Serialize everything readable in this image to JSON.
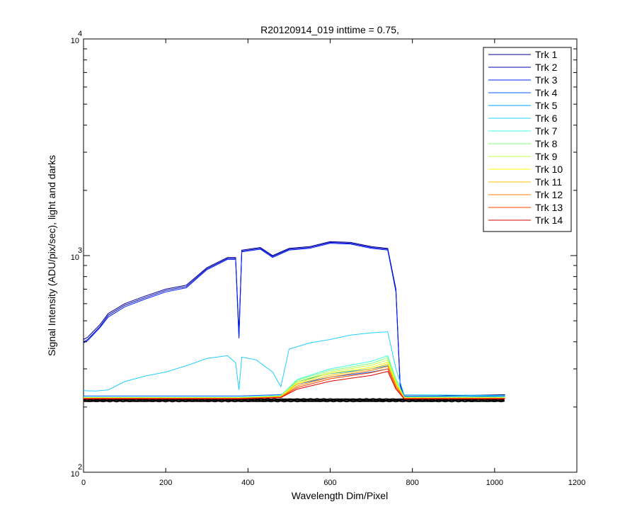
{
  "chart_data": {
    "type": "line",
    "title": "R20120914_019 inttime = 0.75,",
    "xlabel": "Wavelength Dim/Pixel",
    "ylabel": "Signal Intensity (ADU/pix/sec), light and darks",
    "xlim": [
      0,
      1200
    ],
    "ylim": [
      100,
      10000
    ],
    "yscale": "log",
    "x_ticks": [
      0,
      200,
      400,
      600,
      800,
      1000,
      1200
    ],
    "y_ticks": [
      {
        "value": 100,
        "base": "10",
        "exp": "2"
      },
      {
        "value": 1000,
        "base": "10",
        "exp": "3"
      },
      {
        "value": 10000,
        "base": "10",
        "exp": "4"
      }
    ],
    "grid": false,
    "legend_position": "top-right",
    "series": [
      {
        "name": "Trk 1",
        "color": "#00008f",
        "points": [
          [
            0,
            410
          ],
          [
            10,
            420
          ],
          [
            40,
            480
          ],
          [
            60,
            540
          ],
          [
            100,
            600
          ],
          [
            150,
            650
          ],
          [
            200,
            700
          ],
          [
            250,
            730
          ],
          [
            300,
            880
          ],
          [
            350,
            980
          ],
          [
            370,
            980
          ],
          [
            378,
            440
          ],
          [
            385,
            1060
          ],
          [
            430,
            1090
          ],
          [
            460,
            1000
          ],
          [
            500,
            1080
          ],
          [
            550,
            1100
          ],
          [
            600,
            1160
          ],
          [
            650,
            1150
          ],
          [
            700,
            1100
          ],
          [
            740,
            1080
          ],
          [
            760,
            700
          ],
          [
            770,
            260
          ],
          [
            780,
            225
          ],
          [
            860,
            225
          ],
          [
            1025,
            228
          ]
        ]
      },
      {
        "name": "Trk 2",
        "color": "#0000bf",
        "points": [
          [
            0,
            400
          ],
          [
            10,
            410
          ],
          [
            40,
            470
          ],
          [
            60,
            530
          ],
          [
            100,
            590
          ],
          [
            150,
            640
          ],
          [
            200,
            690
          ],
          [
            250,
            720
          ],
          [
            300,
            870
          ],
          [
            350,
            970
          ],
          [
            370,
            970
          ],
          [
            378,
            420
          ],
          [
            385,
            1050
          ],
          [
            430,
            1080
          ],
          [
            460,
            990
          ],
          [
            500,
            1070
          ],
          [
            550,
            1090
          ],
          [
            600,
            1150
          ],
          [
            650,
            1140
          ],
          [
            700,
            1090
          ],
          [
            740,
            1070
          ],
          [
            760,
            690
          ],
          [
            770,
            255
          ],
          [
            780,
            222
          ],
          [
            860,
            222
          ],
          [
            1025,
            226
          ]
        ]
      },
      {
        "name": "Trk 3",
        "color": "#0020ff",
        "points": [
          [
            0,
            395
          ],
          [
            10,
            405
          ],
          [
            40,
            465
          ],
          [
            60,
            520
          ],
          [
            100,
            580
          ],
          [
            150,
            630
          ],
          [
            200,
            680
          ],
          [
            250,
            710
          ],
          [
            300,
            860
          ],
          [
            350,
            960
          ],
          [
            370,
            960
          ],
          [
            378,
            415
          ],
          [
            385,
            1040
          ],
          [
            430,
            1070
          ],
          [
            460,
            980
          ],
          [
            500,
            1060
          ],
          [
            550,
            1080
          ],
          [
            600,
            1140
          ],
          [
            650,
            1130
          ],
          [
            700,
            1080
          ],
          [
            740,
            1060
          ],
          [
            760,
            680
          ],
          [
            770,
            252
          ],
          [
            780,
            221
          ],
          [
            860,
            221
          ],
          [
            1025,
            224
          ]
        ]
      },
      {
        "name": "Trk 4",
        "color": "#0060ff",
        "points": [
          [
            0,
            225
          ],
          [
            380,
            225
          ],
          [
            480,
            228
          ],
          [
            520,
            255
          ],
          [
            600,
            275
          ],
          [
            700,
            290
          ],
          [
            740,
            300
          ],
          [
            760,
            255
          ],
          [
            780,
            224
          ],
          [
            1025,
            224
          ]
        ]
      },
      {
        "name": "Trk 5",
        "color": "#00a0ff",
        "points": [
          [
            0,
            222
          ],
          [
            380,
            222
          ],
          [
            480,
            226
          ],
          [
            520,
            262
          ],
          [
            600,
            285
          ],
          [
            700,
            300
          ],
          [
            740,
            310
          ],
          [
            760,
            262
          ],
          [
            780,
            222
          ],
          [
            1025,
            222
          ]
        ]
      },
      {
        "name": "Trk 6",
        "color": "#20d0ff",
        "points": [
          [
            0,
            238
          ],
          [
            30,
            237
          ],
          [
            60,
            240
          ],
          [
            100,
            262
          ],
          [
            150,
            278
          ],
          [
            200,
            290
          ],
          [
            250,
            310
          ],
          [
            300,
            335
          ],
          [
            350,
            345
          ],
          [
            370,
            320
          ],
          [
            378,
            240
          ],
          [
            385,
            340
          ],
          [
            420,
            330
          ],
          [
            460,
            290
          ],
          [
            480,
            248
          ],
          [
            500,
            370
          ],
          [
            550,
            395
          ],
          [
            600,
            410
          ],
          [
            650,
            430
          ],
          [
            700,
            440
          ],
          [
            740,
            445
          ],
          [
            760,
            300
          ],
          [
            780,
            228
          ],
          [
            1025,
            226
          ]
        ]
      },
      {
        "name": "Trk 7",
        "color": "#40ffe0",
        "points": [
          [
            0,
            222
          ],
          [
            380,
            222
          ],
          [
            480,
            226
          ],
          [
            520,
            268
          ],
          [
            600,
            300
          ],
          [
            700,
            325
          ],
          [
            740,
            345
          ],
          [
            760,
            270
          ],
          [
            780,
            223
          ],
          [
            1025,
            223
          ]
        ]
      },
      {
        "name": "Trk 8",
        "color": "#80ff80",
        "points": [
          [
            0,
            221
          ],
          [
            380,
            221
          ],
          [
            480,
            225
          ],
          [
            520,
            266
          ],
          [
            600,
            295
          ],
          [
            700,
            318
          ],
          [
            740,
            338
          ],
          [
            760,
            266
          ],
          [
            780,
            222
          ],
          [
            1025,
            222
          ]
        ]
      },
      {
        "name": "Trk 9",
        "color": "#c0ff40",
        "points": [
          [
            0,
            221
          ],
          [
            380,
            221
          ],
          [
            480,
            224
          ],
          [
            520,
            262
          ],
          [
            600,
            290
          ],
          [
            700,
            312
          ],
          [
            740,
            330
          ],
          [
            760,
            262
          ],
          [
            780,
            221
          ],
          [
            1025,
            221
          ]
        ]
      },
      {
        "name": "Trk 10",
        "color": "#ffff00",
        "points": [
          [
            0,
            220
          ],
          [
            380,
            220
          ],
          [
            480,
            224
          ],
          [
            520,
            258
          ],
          [
            600,
            286
          ],
          [
            700,
            305
          ],
          [
            740,
            322
          ],
          [
            760,
            258
          ],
          [
            780,
            220
          ],
          [
            1025,
            220
          ]
        ]
      },
      {
        "name": "Trk 11",
        "color": "#ffbf00",
        "points": [
          [
            0,
            220
          ],
          [
            380,
            220
          ],
          [
            480,
            223
          ],
          [
            520,
            255
          ],
          [
            600,
            280
          ],
          [
            700,
            300
          ],
          [
            740,
            315
          ],
          [
            760,
            255
          ],
          [
            780,
            220
          ],
          [
            1025,
            220
          ]
        ]
      },
      {
        "name": "Trk 12",
        "color": "#ff8000",
        "points": [
          [
            0,
            219
          ],
          [
            380,
            219
          ],
          [
            480,
            222
          ],
          [
            520,
            250
          ],
          [
            600,
            275
          ],
          [
            700,
            295
          ],
          [
            740,
            308
          ],
          [
            760,
            250
          ],
          [
            780,
            219
          ],
          [
            1025,
            219
          ]
        ]
      },
      {
        "name": "Trk 13",
        "color": "#ff4000",
        "points": [
          [
            0,
            219
          ],
          [
            380,
            219
          ],
          [
            480,
            222
          ],
          [
            520,
            246
          ],
          [
            600,
            270
          ],
          [
            700,
            288
          ],
          [
            740,
            300
          ],
          [
            760,
            246
          ],
          [
            780,
            219
          ],
          [
            1025,
            219
          ]
        ]
      },
      {
        "name": "Trk 14",
        "color": "#df0000",
        "points": [
          [
            0,
            218
          ],
          [
            380,
            218
          ],
          [
            480,
            221
          ],
          [
            520,
            242
          ],
          [
            600,
            263
          ],
          [
            700,
            280
          ],
          [
            740,
            292
          ],
          [
            760,
            242
          ],
          [
            780,
            218
          ],
          [
            1025,
            218
          ]
        ]
      }
    ],
    "dark_traces": {
      "color": "#000000",
      "level": 215,
      "x_range": [
        0,
        1025
      ]
    }
  }
}
